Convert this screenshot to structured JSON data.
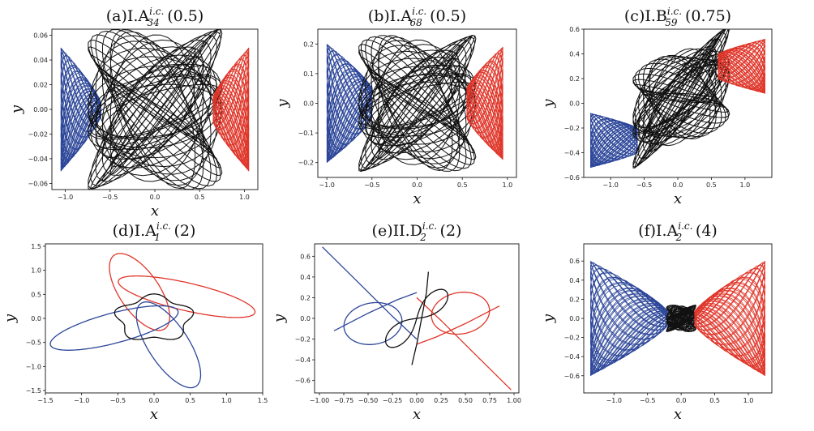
{
  "colors": {
    "left": "#2c4699",
    "center": "#111111",
    "right": "#e0362a"
  },
  "chart_data": [
    {
      "id": "a",
      "type": "line",
      "style": "dense",
      "title": {
        "pre": "(a)I.A",
        "sup": "i.c.",
        "sub": "34",
        "post": "(0.5)"
      },
      "xlabel": "x",
      "ylabel": "y",
      "xlim": [
        -1.15,
        1.15
      ],
      "ylim": [
        -0.065,
        0.065
      ],
      "xticks": [
        -1.0,
        -0.5,
        0.0,
        0.5,
        1.0
      ],
      "xtick_labels": [
        "−1.0",
        "−0.5",
        "0.0",
        "0.5",
        "1.0"
      ],
      "yticks": [
        -0.06,
        -0.04,
        -0.02,
        0.0,
        0.02,
        0.04,
        0.06
      ],
      "ytick_labels": [
        "−0.06",
        "−0.04",
        "−0.02",
        "0.00",
        "0.02",
        "0.04",
        "0.06"
      ],
      "series": [
        {
          "region": "left",
          "x_range": [
            -1.05,
            -0.6
          ],
          "y_half": [
            0.005,
            0.05
          ]
        },
        {
          "region": "center",
          "center": [
            0.0,
            0.0
          ],
          "rx": 0.75,
          "ry": 0.065
        },
        {
          "region": "right",
          "x_range": [
            0.65,
            1.05
          ],
          "y_half": [
            0.01,
            0.05
          ]
        }
      ]
    },
    {
      "id": "b",
      "type": "line",
      "style": "dense",
      "title": {
        "pre": "(b)I.A",
        "sup": "i.c.",
        "sub": "68",
        "post": "(0.5)"
      },
      "xlabel": "x",
      "ylabel": "y",
      "xlim": [
        -1.1,
        1.1
      ],
      "ylim": [
        -0.25,
        0.25
      ],
      "xticks": [
        -1.0,
        -0.5,
        0.0,
        0.5,
        1.0
      ],
      "xtick_labels": [
        "−1.0",
        "−0.5",
        "0.0",
        "0.5",
        "1.0"
      ],
      "yticks": [
        -0.2,
        -0.1,
        0.0,
        0.1,
        0.2
      ],
      "ytick_labels": [
        "−0.2",
        "−0.1",
        "0.0",
        "0.1",
        "0.2"
      ],
      "series": [
        {
          "region": "left",
          "x_range": [
            -1.0,
            -0.5
          ],
          "y_half": [
            0.05,
            0.2
          ]
        },
        {
          "region": "center",
          "center": [
            0.0,
            0.0
          ],
          "rx": 0.65,
          "ry": 0.23
        },
        {
          "region": "right",
          "x_range": [
            0.55,
            0.95
          ],
          "y_half": [
            0.05,
            0.19
          ]
        }
      ]
    },
    {
      "id": "c",
      "type": "line",
      "style": "dense",
      "title": {
        "pre": "(c)I.B",
        "sup": "i.c.",
        "sub": "59",
        "post": "(0.75)"
      },
      "xlabel": "x",
      "ylabel": "y",
      "xlim": [
        -1.4,
        1.4
      ],
      "ylim": [
        -0.6,
        0.6
      ],
      "xticks": [
        -1.0,
        -0.5,
        0.0,
        0.5,
        1.0
      ],
      "xtick_labels": [
        "−1.0",
        "−0.5",
        "0.0",
        "0.5",
        "1.0"
      ],
      "yticks": [
        -0.6,
        -0.4,
        -0.2,
        0.0,
        0.2,
        0.4,
        0.6
      ],
      "ytick_labels": [
        "−0.6",
        "−0.4",
        "−0.2",
        "0.0",
        "0.2",
        "0.4",
        "0.6"
      ],
      "series": [
        {
          "region": "left",
          "center": [
            -1.0,
            -0.3
          ],
          "x_range": [
            -1.3,
            -0.6
          ],
          "y_half": [
            0.1,
            0.22
          ]
        },
        {
          "region": "center",
          "center": [
            0.05,
            0.05
          ],
          "rx": 0.72,
          "ry": 0.4,
          "tilt": 0.25
        },
        {
          "region": "right",
          "center": [
            1.0,
            0.3
          ],
          "x_range": [
            0.6,
            1.3
          ],
          "y_half": [
            0.1,
            0.22
          ]
        }
      ]
    },
    {
      "id": "d",
      "type": "line",
      "style": "orbit",
      "title": {
        "pre": "(d)I.A",
        "sup": "i.c.",
        "sub": "1",
        "post": "(2)"
      },
      "xlabel": "x",
      "ylabel": "y",
      "xlim": [
        -1.5,
        1.5
      ],
      "ylim": [
        -1.55,
        1.55
      ],
      "xticks": [
        -1.5,
        -1.0,
        -0.5,
        0.0,
        0.5,
        1.0,
        1.5
      ],
      "xtick_labels": [
        "−1.5",
        "−1.0",
        "−0.5",
        "0.0",
        "0.5",
        "1.0",
        "1.5"
      ],
      "yticks": [
        -1.5,
        -1.0,
        -0.5,
        0.0,
        0.5,
        1.0,
        1.5
      ],
      "ytick_labels": [
        "−1.5",
        "−1.0",
        "−0.5",
        "0.0",
        "0.5",
        "1.0",
        "1.5"
      ],
      "series": [
        {
          "region": "right",
          "center": [
            0.45,
            0.45
          ],
          "rx": 1.0,
          "ry": 0.28,
          "rot": -0.35
        },
        {
          "region": "right",
          "center": [
            -0.2,
            0.55
          ],
          "rx": 0.85,
          "ry": 0.3,
          "rot": -1.2
        },
        {
          "region": "left",
          "center": [
            -0.55,
            -0.2
          ],
          "rx": 0.95,
          "ry": 0.3,
          "rot": 0.4
        },
        {
          "region": "left",
          "center": [
            0.2,
            -0.55
          ],
          "rx": 0.95,
          "ry": 0.3,
          "rot": -1.2
        },
        {
          "region": "center",
          "center": [
            0.0,
            0.0
          ],
          "rx": 0.5,
          "ry": 0.45,
          "wobble": 0.13
        }
      ]
    },
    {
      "id": "e",
      "type": "line",
      "style": "orbit",
      "title": {
        "pre": "(e)II.D",
        "sup": "i.c.",
        "sub": "2",
        "post": "(2)"
      },
      "xlabel": "x",
      "ylabel": "y",
      "xlim": [
        -1.05,
        1.05
      ],
      "ylim": [
        -0.72,
        0.72
      ],
      "xticks": [
        -1.0,
        -0.75,
        -0.5,
        -0.25,
        0.0,
        0.25,
        0.5,
        0.75,
        1.0
      ],
      "xtick_labels": [
        "−1.00",
        "−0.75",
        "−0.50",
        "−0.25",
        "0.00",
        "0.25",
        "0.50",
        "0.75",
        "1.00"
      ],
      "yticks": [
        -0.6,
        -0.4,
        -0.2,
        0.0,
        0.2,
        0.4,
        0.6
      ],
      "ytick_labels": [
        "−0.6",
        "−0.4",
        "−0.2",
        "0.0",
        "0.2",
        "0.4",
        "0.6"
      ],
      "series": [
        {
          "region": "left",
          "polyline": [
            [
              -0.97,
              0.69
            ],
            [
              -0.55,
              0.3
            ],
            [
              -0.25,
              0.02
            ],
            [
              0.0,
              -0.2
            ]
          ]
        },
        {
          "region": "left",
          "center": [
            -0.45,
            -0.05
          ],
          "rx": 0.3,
          "ry": 0.2,
          "rot": 0.15
        },
        {
          "region": "left",
          "polyline": [
            [
              -0.85,
              -0.12
            ],
            [
              -0.5,
              0.05
            ],
            [
              -0.2,
              0.18
            ],
            [
              0.0,
              0.25
            ]
          ]
        },
        {
          "region": "right",
          "polyline": [
            [
              0.97,
              -0.69
            ],
            [
              0.55,
              -0.3
            ],
            [
              0.25,
              -0.02
            ],
            [
              0.0,
              0.2
            ]
          ]
        },
        {
          "region": "right",
          "center": [
            0.45,
            0.05
          ],
          "rx": 0.3,
          "ry": 0.2,
          "rot": 0.15
        },
        {
          "region": "right",
          "polyline": [
            [
              0.85,
              0.12
            ],
            [
              0.5,
              -0.05
            ],
            [
              0.2,
              -0.18
            ],
            [
              0.0,
              -0.25
            ]
          ]
        },
        {
          "region": "center",
          "center": [
            0.0,
            0.0
          ],
          "lemniscate": [
            0.2,
            0.13
          ],
          "rot": 0.7
        },
        {
          "region": "center",
          "polyline": [
            [
              -0.05,
              -0.45
            ],
            [
              0.0,
              -0.25
            ],
            [
              0.05,
              0.0
            ],
            [
              0.1,
              0.25
            ],
            [
              0.12,
              0.45
            ]
          ]
        }
      ]
    },
    {
      "id": "f",
      "type": "line",
      "style": "dense",
      "title": {
        "pre": "(f)I.A",
        "sup": "i.c.",
        "sub": "2",
        "post": "(4)"
      },
      "xlabel": "x",
      "ylabel": "y",
      "xlim": [
        -1.45,
        1.35
      ],
      "ylim": [
        -0.78,
        0.78
      ],
      "xticks": [
        -1.0,
        -0.5,
        0.0,
        0.5,
        1.0
      ],
      "xtick_labels": [
        "−1.0",
        "−0.5",
        "0.0",
        "0.5",
        "1.0"
      ],
      "yticks": [
        -0.6,
        -0.4,
        -0.2,
        0.0,
        0.2,
        0.4,
        0.6
      ],
      "ytick_labels": [
        "−0.6",
        "−0.4",
        "−0.2",
        "0.0",
        "0.2",
        "0.4",
        "0.6"
      ],
      "series": [
        {
          "region": "left",
          "x_range": [
            -1.35,
            -0.2
          ],
          "y_half": [
            0.07,
            0.6
          ]
        },
        {
          "region": "center",
          "center": [
            0.0,
            0.0
          ],
          "rx": 0.22,
          "ry": 0.14
        },
        {
          "region": "right",
          "x_range": [
            0.2,
            1.25
          ],
          "y_half": [
            0.07,
            0.6
          ]
        }
      ]
    }
  ]
}
